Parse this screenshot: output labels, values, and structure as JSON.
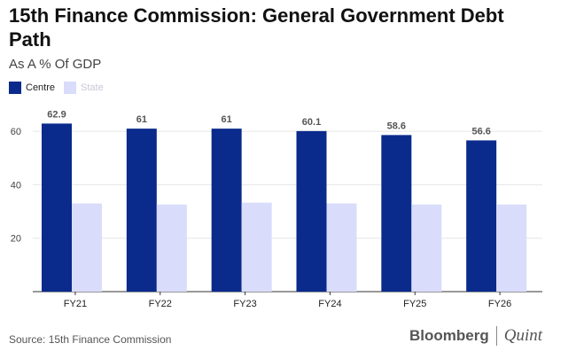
{
  "chart_data": {
    "type": "bar",
    "title": "15th Finance Commission: General Government Debt Path",
    "subtitle": "As A % Of GDP",
    "categories": [
      "FY21",
      "FY22",
      "FY23",
      "FY24",
      "FY25",
      "FY26"
    ],
    "series": [
      {
        "name": "Centre",
        "values": [
          62.9,
          61,
          61,
          60.1,
          58.6,
          56.6
        ],
        "color": "#0a2a8c",
        "show_labels": true
      },
      {
        "name": "State",
        "values": [
          33,
          32.6,
          33.3,
          33,
          32.6,
          32.6
        ],
        "color": "#d9dcfa",
        "show_labels": false
      }
    ],
    "ylim": [
      0,
      70
    ],
    "yticks": [
      20,
      40,
      60
    ],
    "xlabel": "",
    "ylabel": "",
    "grid": true,
    "legend": "top-left"
  },
  "footer": {
    "source": "Source: 15th Finance Commission",
    "brand_primary": "Bloomberg",
    "brand_secondary": "Quint"
  }
}
